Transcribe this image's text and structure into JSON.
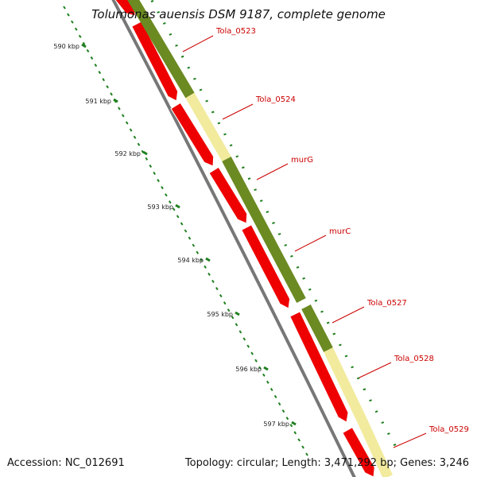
{
  "title": "Tolumonas auensis DSM 9187, complete genome",
  "accession_text": "Accession: NC_012691",
  "summary_text": "Topology: circular; Length: 3,471,292 bp; Genes: 3,246",
  "ruler": {
    "ticks": [
      "590 kbp",
      "591 kbp",
      "592 kbp",
      "593 kbp",
      "594 kbp",
      "595 kbp",
      "596 kbp",
      "597 kbp"
    ]
  },
  "colors": {
    "cds": "#ee0000",
    "cds_light": "#ff6a6a",
    "cog_dark": "#6b8a22",
    "cog_light": "#f2eb9e",
    "backbone": "#777777",
    "tick": "#1e7f1e",
    "label": "#cc0000"
  },
  "genes": [
    {
      "name": "Tola_0523",
      "cog": "dark"
    },
    {
      "name": "Tola_0524",
      "cog": "light"
    },
    {
      "name": "murG",
      "cog": "dark"
    },
    {
      "name": "murC",
      "cog": "dark"
    },
    {
      "name": "Tola_0527",
      "cog": "dark"
    },
    {
      "name": "Tola_0528",
      "cog": "light"
    },
    {
      "name": "Tola_0529",
      "cog": "light"
    }
  ]
}
